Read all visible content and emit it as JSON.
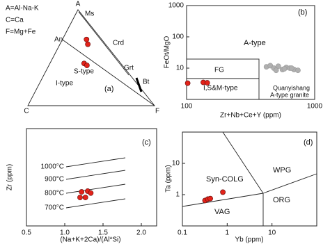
{
  "chart_data": [
    {
      "type": "ternary",
      "label": "(a)",
      "legend_text": [
        "A=Al-Na-K",
        "C=Ca",
        "F=Mg+Fe"
      ],
      "vertices": [
        "A",
        "C",
        "F"
      ],
      "annotations": [
        "Ms",
        "An",
        "Crd",
        "S-type",
        "I-type",
        "Grt",
        "Bt"
      ],
      "series": [
        {
          "color": "#e2231a",
          "a": [
            0.69,
            0.64,
            0.44,
            0.42
          ],
          "c": [
            0.12,
            0.14,
            0.29,
            0.28
          ],
          "f": [
            0.19,
            0.22,
            0.27,
            0.3
          ]
        }
      ]
    },
    {
      "type": "scatter",
      "label": "(b)",
      "x_label": "Zr+Nb+Ce+Y (ppm)",
      "y_label": "FeOt/MgO",
      "xlog": true,
      "ylog": true,
      "xlim": [
        100,
        1000
      ],
      "ylim": [
        1,
        1000
      ],
      "xticks": [
        100,
        1000
      ],
      "yticks": [
        10,
        100,
        1000
      ],
      "annotations": [
        "A-type",
        "FG",
        "I,S&M-type",
        "Quanyishang",
        "A-type granite"
      ],
      "series": [
        {
          "color": "#e2231a",
          "x": [
            102,
            135,
            145
          ],
          "values": [
            3.3,
            3.5,
            3.4
          ]
        },
        {
          "color": "#b0b0b0",
          "x": [
            420,
            450,
            480,
            520,
            560,
            600,
            640,
            690,
            740,
            500,
            580,
            660
          ],
          "values": [
            11,
            12,
            10,
            11.5,
            9,
            10.5,
            10,
            9,
            8.5,
            8.5,
            9.5,
            10
          ]
        }
      ]
    },
    {
      "type": "scatter",
      "label": "(c)",
      "x_label": "(Na+K+2Ca)/(Al*Si)",
      "y_label": "Zr (ppm)",
      "xlim": [
        0.5,
        2.2
      ],
      "ylim": [
        0,
        400
      ],
      "xticks": [
        0.5,
        {
          "value": 1,
          "label": "1.0"
        },
        1.5,
        {
          "value": 2,
          "label": "2.0"
        }
      ],
      "annotations": [
        "1000°C",
        "900°C",
        "800°C",
        "700°C"
      ],
      "series": [
        {
          "color": "#e2231a",
          "x": [
            1.22,
            1.3,
            1.2,
            1.27,
            1.34
          ],
          "values": [
            140,
            143,
            117,
            117,
            135
          ]
        }
      ]
    },
    {
      "type": "scatter",
      "label": "(d)",
      "x_label": "Yb (ppm)",
      "y_label": "Ta (ppm)",
      "xlog": true,
      "ylog": true,
      "xlim": [
        0.1,
        100
      ],
      "ylim": [
        0.1,
        100
      ],
      "xticks": [
        0.1,
        1,
        10
      ],
      "yticks": [
        1,
        10
      ],
      "annotations": [
        "Syn-COLG",
        "WPG",
        "VAG",
        "ORG"
      ],
      "series": [
        {
          "color": "#e2231a",
          "x": [
            0.32,
            0.37,
            0.42,
            0.8
          ],
          "values": [
            0.65,
            0.72,
            0.75,
            1.2
          ]
        }
      ]
    }
  ]
}
